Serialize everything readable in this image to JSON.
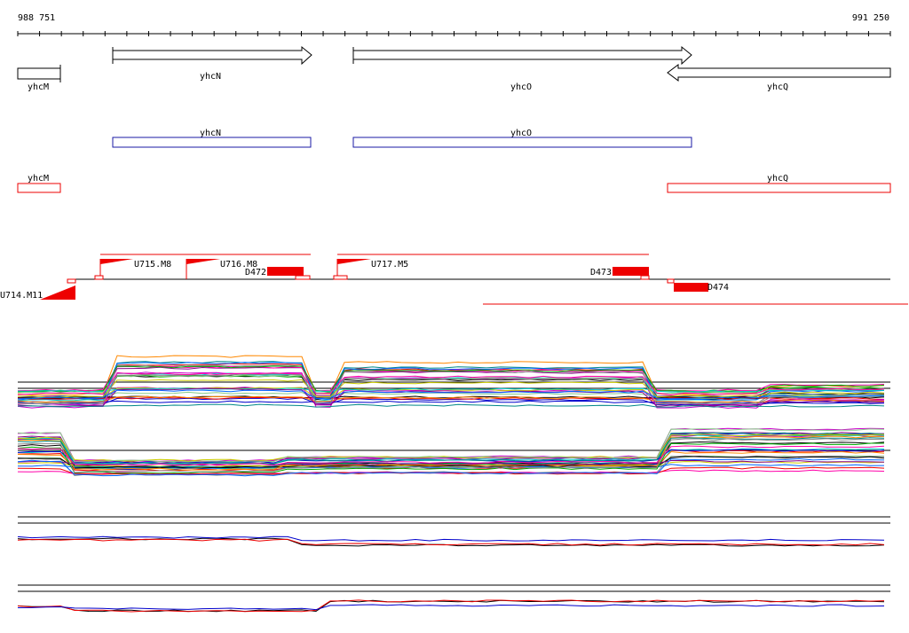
{
  "ruler": {
    "start": "988 751",
    "end": "991 250"
  },
  "genes": [
    {
      "label": "yhcM"
    },
    {
      "label": "yhcN"
    },
    {
      "label": "yhcO"
    },
    {
      "label": "yhcQ"
    }
  ],
  "proteins": [
    {
      "label": "yhcN"
    },
    {
      "label": "yhcO"
    }
  ],
  "rnas": [
    {
      "label": "yhcM"
    },
    {
      "label": "yhcQ"
    }
  ],
  "features": [
    {
      "label": "U714.M11"
    },
    {
      "label": "U715.M8"
    },
    {
      "label": "U716.M8"
    },
    {
      "label": "D472"
    },
    {
      "label": "U717.M5"
    },
    {
      "label": "D473"
    },
    {
      "label": "D474"
    }
  ]
}
